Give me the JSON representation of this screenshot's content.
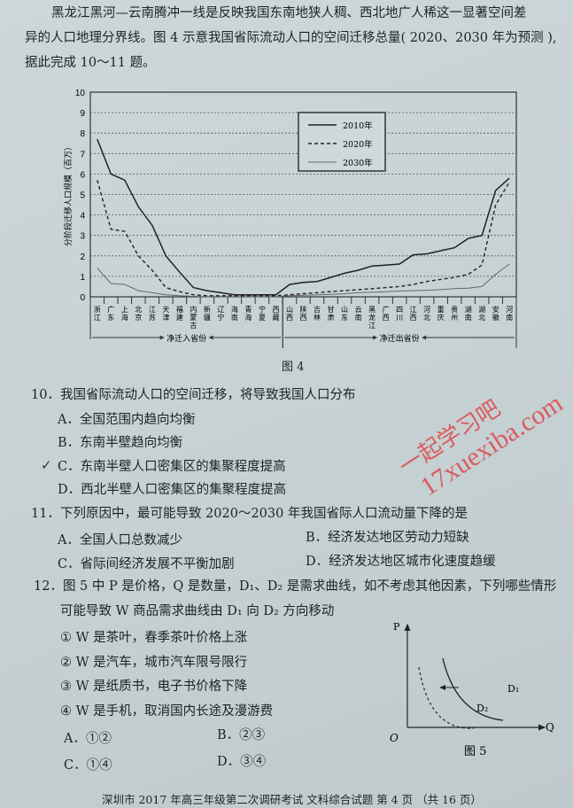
{
  "intro": {
    "line1": "黑龙江黑河—云南腾冲一线是反映我国东南地狭人稠、西北地广人稀这一显著空间差",
    "line2": "异的人口地理分界线。图 4 示意我国省际流动人口的空间迁移总量( 2020、2030 年为预测 ),",
    "line3": "据此完成 10～11 题。"
  },
  "chart_data": {
    "type": "line",
    "title": "",
    "ylabel": "分阶段迁移人口规模（百万）",
    "ylim": [
      0,
      10
    ],
    "yticks": [
      "0",
      "1",
      "2",
      "3",
      "4",
      "5",
      "6",
      "7",
      "8",
      "9",
      "10"
    ],
    "grid": "horizontal dashed",
    "legend_placement": "top-center",
    "categories": [
      "浙江",
      "广东",
      "上海",
      "北京",
      "江苏",
      "天津",
      "福建",
      "内蒙古",
      "新疆",
      "辽宁",
      "海南",
      "青海",
      "宁夏",
      "西藏",
      "山西",
      "陕西",
      "吉林",
      "甘肃",
      "山东",
      "云南",
      "黑龙江",
      "广西",
      "四川",
      "江西",
      "河北",
      "重庆",
      "贵州",
      "湖南",
      "湖北",
      "安徽",
      "河南"
    ],
    "groups": [
      {
        "label": "净迁入省份",
        "count": 14
      },
      {
        "label": "净迁出省份",
        "count": 17
      }
    ],
    "series": [
      {
        "name": "2010年",
        "style": "solid",
        "values": [
          7.7,
          6.0,
          5.7,
          4.4,
          3.5,
          2.0,
          1.2,
          0.45,
          0.3,
          0.2,
          0.1,
          0.1,
          0.1,
          0.1,
          0.6,
          0.7,
          0.75,
          0.95,
          1.15,
          1.3,
          1.5,
          1.55,
          1.6,
          2.05,
          2.1,
          2.25,
          2.4,
          2.85,
          3.0,
          5.2,
          5.8
        ]
      },
      {
        "name": "2020年",
        "style": "dashed",
        "values": [
          5.7,
          3.3,
          3.2,
          2.0,
          1.3,
          0.45,
          0.25,
          0.1,
          0.05,
          0.05,
          0.05,
          0.05,
          0.05,
          0.05,
          0.1,
          0.15,
          0.2,
          0.25,
          0.3,
          0.35,
          0.4,
          0.45,
          0.5,
          0.6,
          0.75,
          0.85,
          0.95,
          1.1,
          1.55,
          4.5,
          5.6
        ]
      },
      {
        "name": "2030年",
        "style": "thin",
        "values": [
          1.4,
          0.65,
          0.6,
          0.3,
          0.2,
          0.1,
          0.05,
          0.02,
          0.0,
          0.0,
          0.0,
          0.0,
          0.0,
          0.0,
          0.05,
          0.08,
          0.1,
          0.12,
          0.15,
          0.2,
          0.22,
          0.25,
          0.28,
          0.3,
          0.32,
          0.35,
          0.4,
          0.42,
          0.5,
          1.1,
          1.6
        ]
      }
    ],
    "caption": "图 4"
  },
  "q10": {
    "stem": "10．我国省际流动人口的空间迁移，将导致我国人口分布",
    "options": [
      "A．全国范围内趋向均衡",
      "B．东南半壁趋向均衡",
      "C．东南半壁人口密集区的集聚程度提高",
      "D．西北半壁人口密集区的集聚程度提高"
    ],
    "handwritten_mark": "✓"
  },
  "q11": {
    "stem": "11．下列原因中，最可能导致 2020～2030 年我国省际人口流动量下降的是",
    "options": [
      "A．全国人口总数减少",
      "B．经济发达地区劳动力短缺",
      "C．省际间经济发展不平衡加剧",
      "D．经济发达地区城市化速度趋缓"
    ]
  },
  "q12": {
    "stem1": "12．图 5 中 P 是价格，Q 是数量，D₁、D₂ 是需求曲线，如不考虑其他因素，下列哪些情形",
    "stem2": "可能导致 W 商品需求曲线由 D₁ 向 D₂ 方向移动",
    "items": [
      "① W 是茶叶，春季茶叶价格上涨",
      "② W 是汽车，城市汽车限号限行",
      "③ W 是纸质书，电子书价格下降",
      "④ W 是手机，取消国内长途及漫游费"
    ],
    "options": [
      "A．①②",
      "B．②③",
      "C．①④",
      "D．③④"
    ],
    "figure": {
      "p_label": "P",
      "q_label": "Q",
      "origin": "O",
      "d1": "D₁",
      "d2": "D₂",
      "caption": "图 5"
    }
  },
  "footer": "深圳市 2017 年高三年级第二次调研考试  文科综合试题  第 4 页 （共 16 页）",
  "watermark": {
    "line1": "一起学习吧",
    "line2": "17xuexiba.com",
    "color": "#e0363a"
  }
}
